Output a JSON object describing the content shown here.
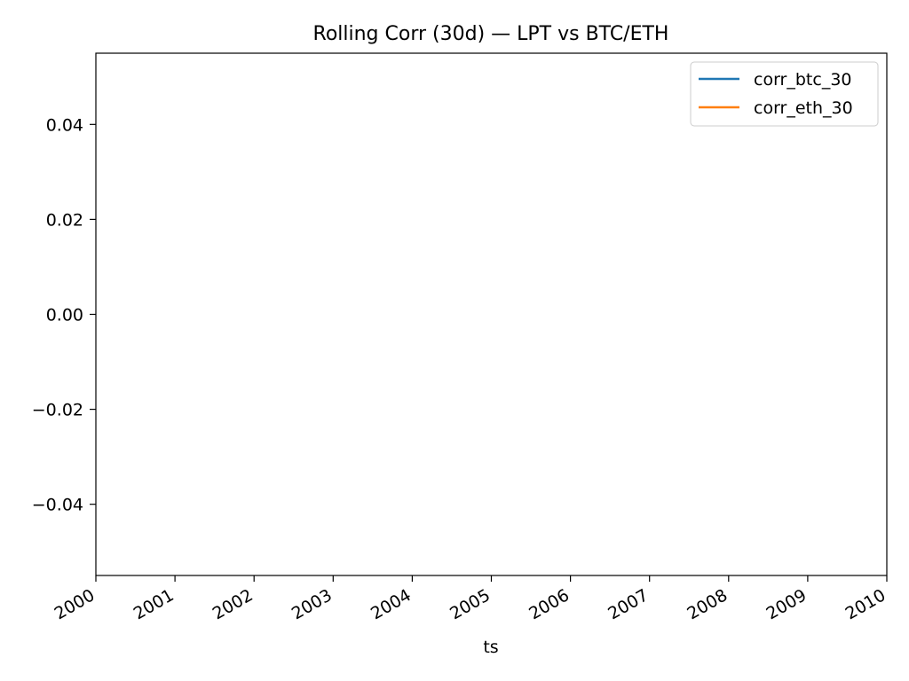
{
  "chart_data": {
    "type": "line",
    "title": "Rolling Corr (30d) — LPT vs BTC/ETH",
    "xlabel": "ts",
    "ylabel": "",
    "xlim": [
      "2000",
      "2010"
    ],
    "ylim": [
      -0.055,
      0.055
    ],
    "x_ticks": [
      "2000",
      "2001",
      "2002",
      "2003",
      "2004",
      "2005",
      "2006",
      "2007",
      "2008",
      "2009",
      "2010"
    ],
    "y_ticks": [
      -0.04,
      -0.02,
      0.0,
      0.02,
      0.04
    ],
    "y_tick_labels": [
      "−0.04",
      "−0.02",
      "0.00",
      "0.02",
      "0.04"
    ],
    "grid": false,
    "legend_position": "top-right",
    "series": [
      {
        "name": "corr_btc_30",
        "color": "#1f77b4",
        "x": [],
        "values": []
      },
      {
        "name": "corr_eth_30",
        "color": "#ff7f0e",
        "x": [],
        "values": []
      }
    ]
  }
}
